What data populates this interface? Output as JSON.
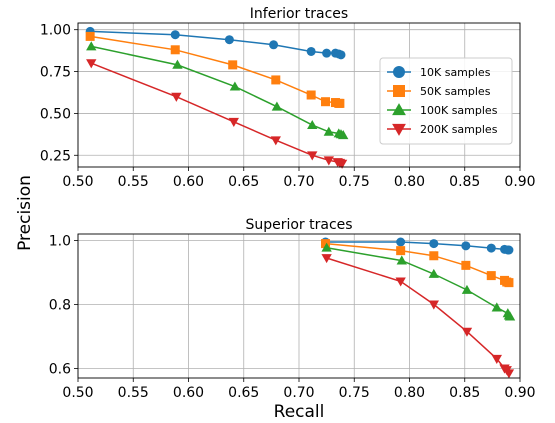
{
  "figure": {
    "xlabel": "Recall",
    "ylabel": "Precision",
    "colors": {
      "10K samples": "#1f77b4",
      "50K samples": "#ff7f0e",
      "100K samples": "#2ca02c",
      "200K samples": "#d62728"
    },
    "markers": {
      "10K samples": "circle",
      "50K samples": "square",
      "100K samples": "triangle-up",
      "200K samples": "triangle-down"
    }
  },
  "chart_data": [
    {
      "type": "line",
      "title": "Inferior traces",
      "xlabel": "",
      "ylabel": "",
      "xlim": [
        0.5,
        0.9
      ],
      "ylim": [
        0.18,
        1.04
      ],
      "xticks": [
        "0.50",
        "0.55",
        "0.60",
        "0.65",
        "0.70",
        "0.75",
        "0.80",
        "0.85",
        "0.90"
      ],
      "yticks": [
        "0.25",
        "0.50",
        "0.75",
        "1.00"
      ],
      "grid": true,
      "legend": "right",
      "series": [
        {
          "name": "10K samples",
          "x": [
            0.511,
            0.588,
            0.637,
            0.677,
            0.711,
            0.725,
            0.733,
            0.736,
            0.738
          ],
          "y": [
            0.99,
            0.97,
            0.94,
            0.91,
            0.87,
            0.86,
            0.86,
            0.855,
            0.85
          ]
        },
        {
          "name": "50K samples",
          "x": [
            0.511,
            0.588,
            0.64,
            0.679,
            0.711,
            0.724,
            0.733,
            0.736,
            0.737
          ],
          "y": [
            0.96,
            0.88,
            0.79,
            0.7,
            0.61,
            0.57,
            0.565,
            0.56,
            0.56
          ]
        },
        {
          "name": "100K samples",
          "x": [
            0.512,
            0.59,
            0.642,
            0.68,
            0.712,
            0.727,
            0.736,
            0.738,
            0.74
          ],
          "y": [
            0.9,
            0.79,
            0.66,
            0.54,
            0.43,
            0.39,
            0.38,
            0.375,
            0.37
          ]
        },
        {
          "name": "200K samples",
          "x": [
            0.512,
            0.589,
            0.641,
            0.679,
            0.712,
            0.727,
            0.735,
            0.737,
            0.739
          ],
          "y": [
            0.8,
            0.6,
            0.45,
            0.34,
            0.25,
            0.22,
            0.21,
            0.205,
            0.2
          ]
        }
      ]
    },
    {
      "type": "line",
      "title": "Superior traces",
      "xlabel": "Recall",
      "ylabel": "Precision",
      "xlim": [
        0.5,
        0.9
      ],
      "ylim": [
        0.57,
        1.02
      ],
      "xticks": [
        "0.50",
        "0.55",
        "0.60",
        "0.65",
        "0.70",
        "0.75",
        "0.80",
        "0.85",
        "0.90"
      ],
      "yticks": [
        "0.6",
        "0.8",
        "1.0"
      ],
      "grid": true,
      "legend": "none",
      "series": [
        {
          "name": "10K samples",
          "x": [
            0.724,
            0.792,
            0.822,
            0.851,
            0.874,
            0.886,
            0.889,
            0.89
          ],
          "y": [
            0.995,
            0.995,
            0.99,
            0.983,
            0.976,
            0.972,
            0.97,
            0.97
          ]
        },
        {
          "name": "50K samples",
          "x": [
            0.724,
            0.792,
            0.822,
            0.851,
            0.874,
            0.886,
            0.888,
            0.89
          ],
          "y": [
            0.99,
            0.968,
            0.952,
            0.922,
            0.89,
            0.875,
            0.87,
            0.868
          ]
        },
        {
          "name": "100K samples",
          "x": [
            0.725,
            0.793,
            0.822,
            0.852,
            0.879,
            0.889,
            0.89,
            0.891
          ],
          "y": [
            0.977,
            0.937,
            0.895,
            0.845,
            0.79,
            0.772,
            0.765,
            0.762
          ]
        },
        {
          "name": "200K samples",
          "x": [
            0.725,
            0.792,
            0.822,
            0.852,
            0.879,
            0.886,
            0.888,
            0.89
          ],
          "y": [
            0.945,
            0.872,
            0.8,
            0.715,
            0.63,
            0.6,
            0.595,
            0.585
          ]
        }
      ]
    }
  ]
}
